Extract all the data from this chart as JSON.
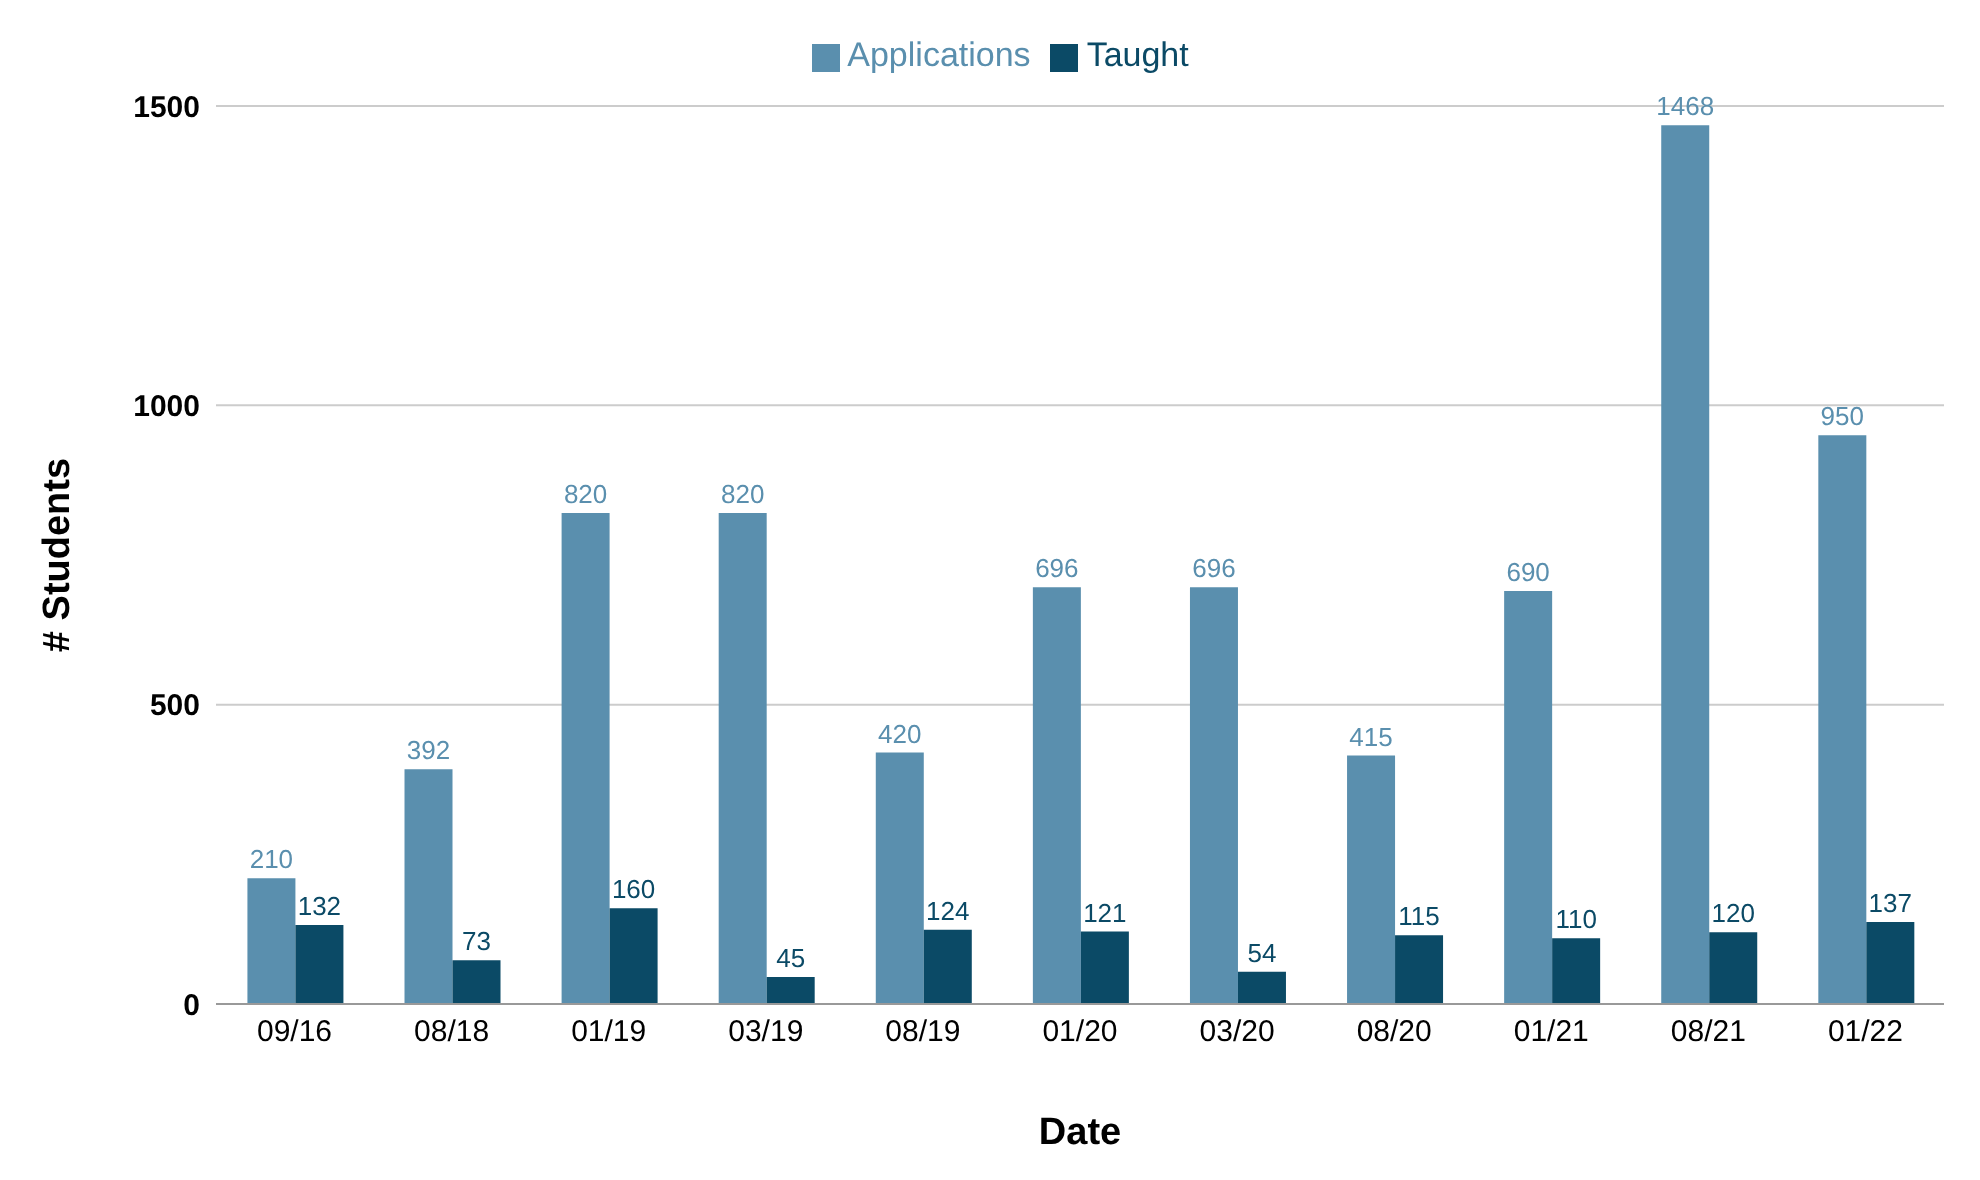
{
  "chart_data": {
    "type": "bar",
    "xlabel": "Date",
    "ylabel": "# Students",
    "categories": [
      "09/16",
      "08/18",
      "01/19",
      "03/19",
      "08/19",
      "01/20",
      "03/20",
      "08/20",
      "01/21",
      "08/21",
      "01/22"
    ],
    "series": [
      {
        "name": "Applications",
        "color": "#5a8fae",
        "values": [
          210,
          392,
          820,
          820,
          420,
          696,
          696,
          415,
          690,
          1468,
          950
        ]
      },
      {
        "name": "Taught",
        "color": "#0b4a66",
        "values": [
          132,
          73,
          160,
          45,
          124,
          121,
          54,
          115,
          110,
          120,
          137
        ]
      }
    ],
    "ylim": [
      0,
      1500
    ],
    "yticks": [
      0,
      500,
      1000,
      1500
    ],
    "grid": "y",
    "legend": "top",
    "data_labels": true
  }
}
